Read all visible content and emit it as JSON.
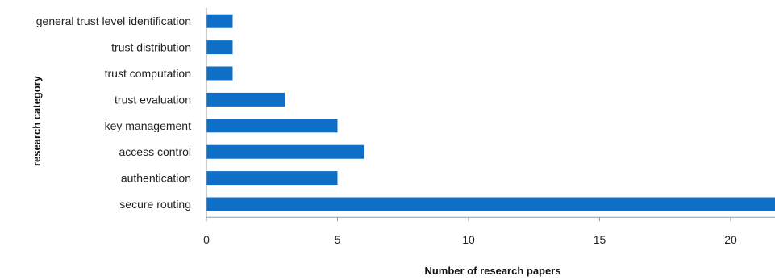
{
  "chart_data": {
    "type": "bar",
    "orientation": "horizontal",
    "categories": [
      "general trust level identification",
      "trust distribution",
      "trust computation",
      "trust evaluation",
      "key management",
      "access control",
      "authentication",
      "secure routing"
    ],
    "values": [
      1,
      1,
      1,
      3,
      5,
      6,
      5,
      22
    ],
    "xlabel": "Number of research papers",
    "ylabel": "research category",
    "xlim": [
      0,
      22
    ],
    "xticks": [
      0,
      5,
      10,
      15,
      20
    ],
    "grid": false,
    "legend": "none",
    "bar_color": "#0f6fc6"
  }
}
